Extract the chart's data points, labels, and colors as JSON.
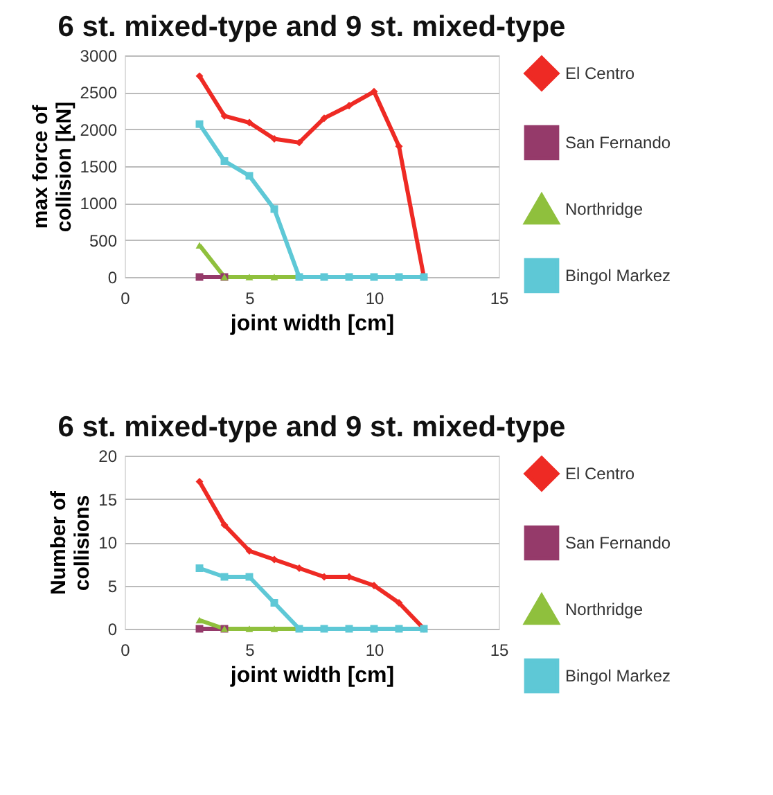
{
  "chart_data": [
    {
      "type": "line",
      "title": "6 st. mixed-type and 9 st. mixed-type",
      "xlabel": "joint width [cm]",
      "ylabel": "max force of collision [kN]",
      "x": [
        3,
        4,
        5,
        6,
        7,
        8,
        9,
        10,
        11,
        12
      ],
      "xlim": [
        0,
        15
      ],
      "xticks": [
        0,
        5,
        10,
        15
      ],
      "ylim": [
        0,
        3000
      ],
      "yticks": [
        0,
        500,
        1000,
        1500,
        2000,
        2500,
        3000
      ],
      "grid": "y",
      "legend": "right",
      "line_style": "solid",
      "series": [
        {
          "name": "El Centro",
          "color": "#ee2a24",
          "marker": "diamond",
          "values": [
            2720,
            2180,
            2090,
            1870,
            1820,
            2150,
            2320,
            2510,
            1770,
            0
          ]
        },
        {
          "name": "San Fernando",
          "color": "#953a6a",
          "marker": "square",
          "values": [
            0,
            0,
            null,
            null,
            null,
            null,
            null,
            null,
            null,
            null
          ]
        },
        {
          "name": "Northridge",
          "color": "#8fc03d",
          "marker": "triangle",
          "values": [
            430,
            0,
            0,
            0,
            0,
            null,
            null,
            null,
            null,
            null
          ]
        },
        {
          "name": "Bingol Markez",
          "color": "#5ec8d6",
          "marker": "square",
          "values": [
            2070,
            1570,
            1370,
            920,
            0,
            0,
            0,
            0,
            0,
            0
          ]
        }
      ]
    },
    {
      "type": "line",
      "title": "6 st. mixed-type and 9 st. mixed-type",
      "xlabel": "joint width  [cm]",
      "ylabel": "Number of collisions",
      "x": [
        3,
        4,
        5,
        6,
        7,
        8,
        9,
        10,
        11,
        12
      ],
      "xlim": [
        0,
        15
      ],
      "xticks": [
        0,
        5,
        10,
        15
      ],
      "ylim": [
        0,
        20
      ],
      "yticks": [
        0,
        5,
        10,
        15,
        20
      ],
      "grid": "y",
      "legend": "right",
      "line_style": "solid",
      "series": [
        {
          "name": "El Centro",
          "color": "#ee2a24",
          "marker": "diamond",
          "values": [
            17,
            12,
            9,
            8,
            7,
            6,
            6,
            5,
            3,
            0
          ]
        },
        {
          "name": "San Fernando",
          "color": "#953a6a",
          "marker": "square",
          "values": [
            0,
            0,
            null,
            null,
            null,
            null,
            null,
            null,
            null,
            null
          ]
        },
        {
          "name": "Northridge",
          "color": "#8fc03d",
          "marker": "triangle",
          "values": [
            1,
            0,
            0,
            0,
            0,
            null,
            null,
            null,
            null,
            null
          ]
        },
        {
          "name": "Bingol Markez",
          "color": "#5ec8d6",
          "marker": "square",
          "values": [
            7,
            6,
            6,
            3,
            0,
            0,
            0,
            0,
            0,
            0
          ]
        }
      ]
    }
  ]
}
